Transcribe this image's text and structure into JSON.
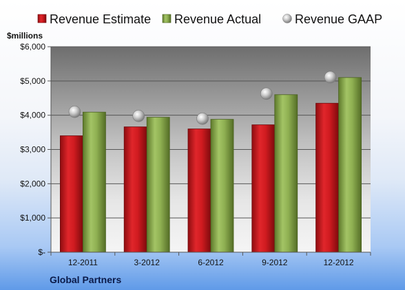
{
  "colors": {
    "estimate": "#c0171c",
    "actual": "#87a84a",
    "gaap": "#b9b9b9",
    "company": "#0b1b4a"
  },
  "chart_data": {
    "type": "bar",
    "title": "",
    "ylabel": "$millions",
    "categories": [
      "12-2011",
      "3-2012",
      "6-2012",
      "9-2012",
      "12-2012"
    ],
    "ylim": [
      0,
      6000
    ],
    "yticks": [
      0,
      1000,
      2000,
      3000,
      4000,
      5000,
      6000
    ],
    "ytick_labels": [
      "$-",
      "$1,000",
      "$2,000",
      "$3,000",
      "$4,000",
      "$5,000",
      "$6,000"
    ],
    "grid": true,
    "legend_position": "top",
    "series": [
      {
        "name": "Revenue Estimate",
        "kind": "bar",
        "values": [
          3400,
          3660,
          3600,
          3720,
          4350
        ]
      },
      {
        "name": "Revenue Actual",
        "kind": "bar",
        "values": [
          4090,
          3940,
          3880,
          4600,
          5100
        ]
      },
      {
        "name": "Revenue GAAP",
        "kind": "marker",
        "values": [
          4100,
          3980,
          3900,
          4630,
          5110
        ]
      }
    ],
    "footer": "Global Partners"
  }
}
